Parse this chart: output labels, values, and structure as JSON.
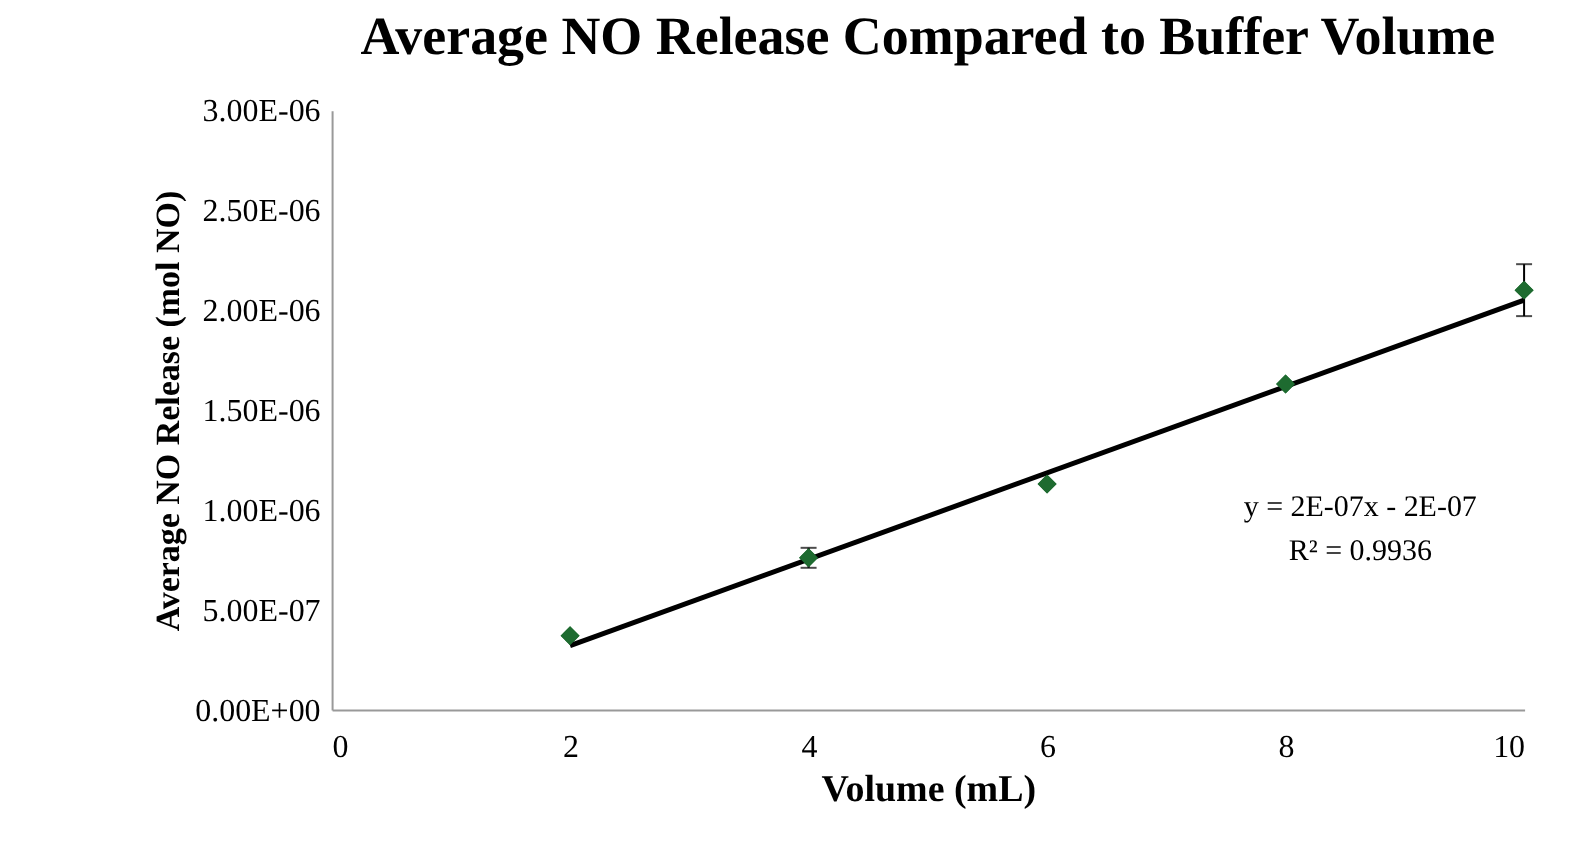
{
  "chart_data": {
    "type": "scatter",
    "title": "Average NO Release Compared to Buffer Volume",
    "xlabel": "Volume (mL)",
    "ylabel": "Average NO Release (mol NO)",
    "xlim": [
      0,
      10
    ],
    "xticks": [
      0,
      2,
      4,
      6,
      8,
      10
    ],
    "ylim": [
      0,
      3e-06
    ],
    "yticks": [
      {
        "value": 0,
        "label": "0.00E+00"
      },
      {
        "value": 5e-07,
        "label": "5.00E-07"
      },
      {
        "value": 1e-06,
        "label": "1.00E-06"
      },
      {
        "value": 1.5e-06,
        "label": "1.50E-06"
      },
      {
        "value": 2e-06,
        "label": "2.00E-06"
      },
      {
        "value": 2.5e-06,
        "label": "2.50E-06"
      },
      {
        "value": 3e-06,
        "label": "3.00E-06"
      }
    ],
    "grid": false,
    "series": [
      {
        "color": "#1e6b30",
        "marker": "diamond",
        "x": [
          2,
          4,
          6,
          8,
          10
        ],
        "values": [
          3.7e-07,
          7.6e-07,
          1.13e-06,
          1.63e-06,
          2.1e-06
        ],
        "errors": [
          null,
          5e-08,
          null,
          null,
          1.3e-07
        ]
      },
      {
        "type": "line",
        "color": "#000000",
        "marker": "none",
        "line_style": "solid",
        "x": [
          2,
          10
        ],
        "values": [
          3.2e-07,
          2.05e-06
        ]
      }
    ],
    "annotations": [
      "y = 2E-07x - 2E-07",
      "R² = 0.9936"
    ]
  }
}
